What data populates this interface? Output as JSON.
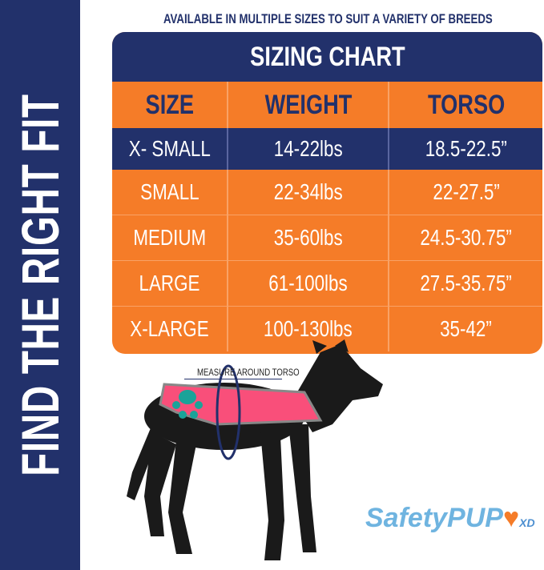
{
  "side_banner": {
    "text": "FIND THE RIGHT FIT"
  },
  "subtitle": "AVAILABLE IN MULTIPLE SIZES TO SUIT A VARIETY OF BREEDS",
  "chart": {
    "title": "SIZING CHART",
    "columns": [
      "SIZE",
      "WEIGHT",
      "TORSO"
    ],
    "rows": [
      [
        "X- SMALL",
        "14-22lbs",
        "18.5-22.5”"
      ],
      [
        "SMALL",
        "22-34lbs",
        "22-27.5”"
      ],
      [
        "MEDIUM",
        "35-60lbs",
        "24.5-30.75”"
      ],
      [
        "LARGE",
        "61-100lbs",
        "27.5-35.75”"
      ],
      [
        "X-LARGE",
        "100-130lbs",
        "35-42”"
      ]
    ]
  },
  "annotation": "MEASURE AROUND TORSO",
  "logo": {
    "text": "SafetyPUP",
    "suffix": "XD"
  },
  "colors": {
    "navy": "#22316b",
    "orange": "#f57c28",
    "vest_pink": "#f94f7a",
    "paw_teal": "#1aa399",
    "logo_blue": "#6fb4e0"
  }
}
